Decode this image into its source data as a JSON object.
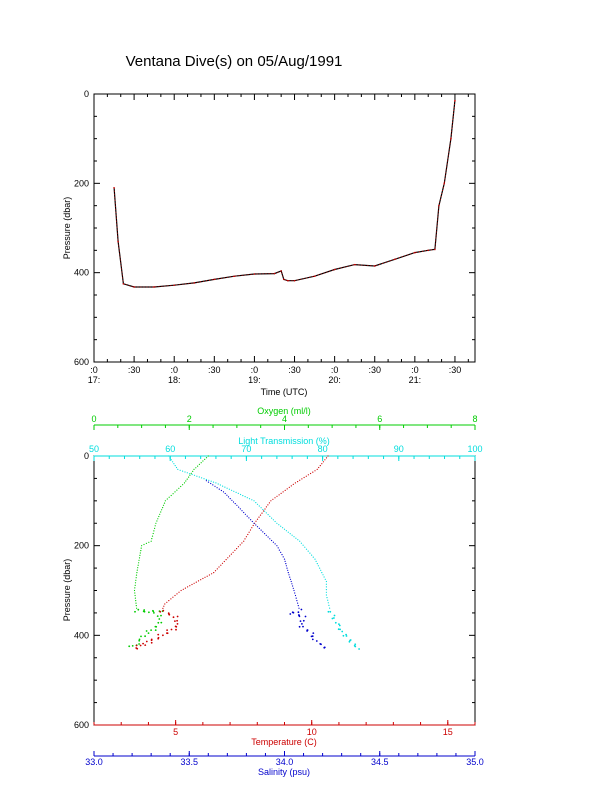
{
  "title": "Ventana Dive(s) on 05/Aug/1991",
  "chart_data": [
    {
      "type": "line",
      "title": "Ventana Dive(s) on 05/Aug/1991",
      "xlabel": "Time (UTC)",
      "ylabel": "Pressure (dbar)",
      "ylim": [
        600,
        0
      ],
      "y_ticks": [
        "0",
        "200",
        "400",
        "600"
      ],
      "x_ticks": [
        {
          "top": ":0",
          "bottom": "17:"
        },
        {
          "top": ":30",
          "bottom": ""
        },
        {
          "top": ":0",
          "bottom": "18:"
        },
        {
          "top": ":30",
          "bottom": ""
        },
        {
          "top": ":0",
          "bottom": "19:"
        },
        {
          "top": ":30",
          "bottom": ""
        },
        {
          "top": ":0",
          "bottom": "20:"
        },
        {
          "top": ":30",
          "bottom": ""
        },
        {
          "top": ":0",
          "bottom": "21:"
        },
        {
          "top": ":30",
          "bottom": ""
        }
      ],
      "series_color": "#cc0000",
      "series_color2": "#000000",
      "x": [
        "17:15",
        "17:18",
        "17:22",
        "17:30",
        "17:45",
        "18:00",
        "18:15",
        "18:30",
        "18:45",
        "19:00",
        "19:15",
        "19:20",
        "19:22",
        "19:25",
        "19:30",
        "19:45",
        "20:00",
        "20:15",
        "20:30",
        "20:45",
        "21:00",
        "21:10",
        "21:15",
        "21:18",
        "21:22",
        "21:27",
        "21:30"
      ],
      "pressure": [
        210,
        330,
        425,
        432,
        432,
        428,
        423,
        415,
        408,
        403,
        402,
        396,
        415,
        418,
        418,
        408,
        393,
        382,
        385,
        370,
        355,
        350,
        348,
        250,
        200,
        100,
        15
      ]
    },
    {
      "type": "scatter",
      "ylabel": "Pressure (dbar)",
      "ylim": [
        600,
        0
      ],
      "y_ticks": [
        "0",
        "200",
        "400",
        "600"
      ],
      "axes": {
        "oxygen": {
          "label": "Oxygen (ml/l)",
          "range": [
            0,
            8
          ],
          "ticks": [
            "0",
            "2",
            "4",
            "6",
            "8"
          ],
          "color": "#00cc00"
        },
        "light_transmission": {
          "label": "Light Transmission (%)",
          "range": [
            50,
            100
          ],
          "ticks": [
            "50",
            "60",
            "70",
            "80",
            "90",
            "100"
          ],
          "color": "#00dddd"
        },
        "temperature": {
          "label": "Temperature (C)",
          "range": [
            2,
            16
          ],
          "ticks": [
            "5",
            "10",
            "15"
          ],
          "color": "#cc0000"
        },
        "salinity": {
          "label": "Salinity (psu)",
          "range": [
            33.0,
            35.0
          ],
          "ticks": [
            "33.0",
            "33.5",
            "34.0",
            "34.5",
            "35.0"
          ],
          "color": "#0000cc"
        }
      },
      "series": [
        {
          "name": "Oxygen (ml/l)",
          "color": "#00cc00",
          "points": [
            [
              2.4,
              0
            ],
            [
              2.1,
              30
            ],
            [
              1.9,
              60
            ],
            [
              1.5,
              100
            ],
            [
              1.3,
              150
            ],
            [
              1.2,
              190
            ],
            [
              1.0,
              200
            ],
            [
              0.9,
              260
            ],
            [
              0.85,
              300
            ],
            [
              0.9,
              345
            ],
            [
              1.4,
              348
            ],
            [
              1.35,
              380
            ],
            [
              1.1,
              395
            ],
            [
              1.0,
              410
            ],
            [
              0.85,
              420
            ],
            [
              0.75,
              430
            ]
          ]
        },
        {
          "name": "Light Transmission (%)",
          "color": "#00dddd",
          "points": [
            [
              59.8,
              0
            ],
            [
              61,
              30
            ],
            [
              66,
              60
            ],
            [
              71,
              100
            ],
            [
              74,
              150
            ],
            [
              77,
              190
            ],
            [
              79,
              230
            ],
            [
              80.5,
              280
            ],
            [
              80.5,
              310
            ],
            [
              81,
              345
            ],
            [
              82,
              380
            ],
            [
              83,
              400
            ],
            [
              84,
              420
            ],
            [
              85,
              432
            ]
          ]
        },
        {
          "name": "Temperature (C)",
          "color": "#cc0000",
          "points": [
            [
              10.6,
              0
            ],
            [
              10.2,
              30
            ],
            [
              9.4,
              60
            ],
            [
              8.5,
              100
            ],
            [
              7.9,
              150
            ],
            [
              7.5,
              190
            ],
            [
              6.4,
              260
            ],
            [
              5.2,
              300
            ],
            [
              4.6,
              330
            ],
            [
              4.5,
              345
            ],
            [
              5.0,
              360
            ],
            [
              5.1,
              380
            ],
            [
              4.6,
              395
            ],
            [
              4.2,
              410
            ],
            [
              3.8,
              420
            ],
            [
              3.4,
              432
            ]
          ]
        },
        {
          "name": "Salinity (psu)",
          "color": "#0000cc",
          "points": [
            [
              33.59,
              55
            ],
            [
              33.68,
              80
            ],
            [
              33.75,
              110
            ],
            [
              33.84,
              150
            ],
            [
              33.96,
              200
            ],
            [
              34.0,
              230
            ],
            [
              34.02,
              260
            ],
            [
              34.05,
              300
            ],
            [
              34.08,
              345
            ],
            [
              34.04,
              350
            ],
            [
              34.1,
              360
            ],
            [
              34.09,
              380
            ],
            [
              34.14,
              395
            ],
            [
              34.16,
              410
            ],
            [
              34.2,
              425
            ],
            [
              34.23,
              432
            ]
          ]
        }
      ]
    }
  ]
}
